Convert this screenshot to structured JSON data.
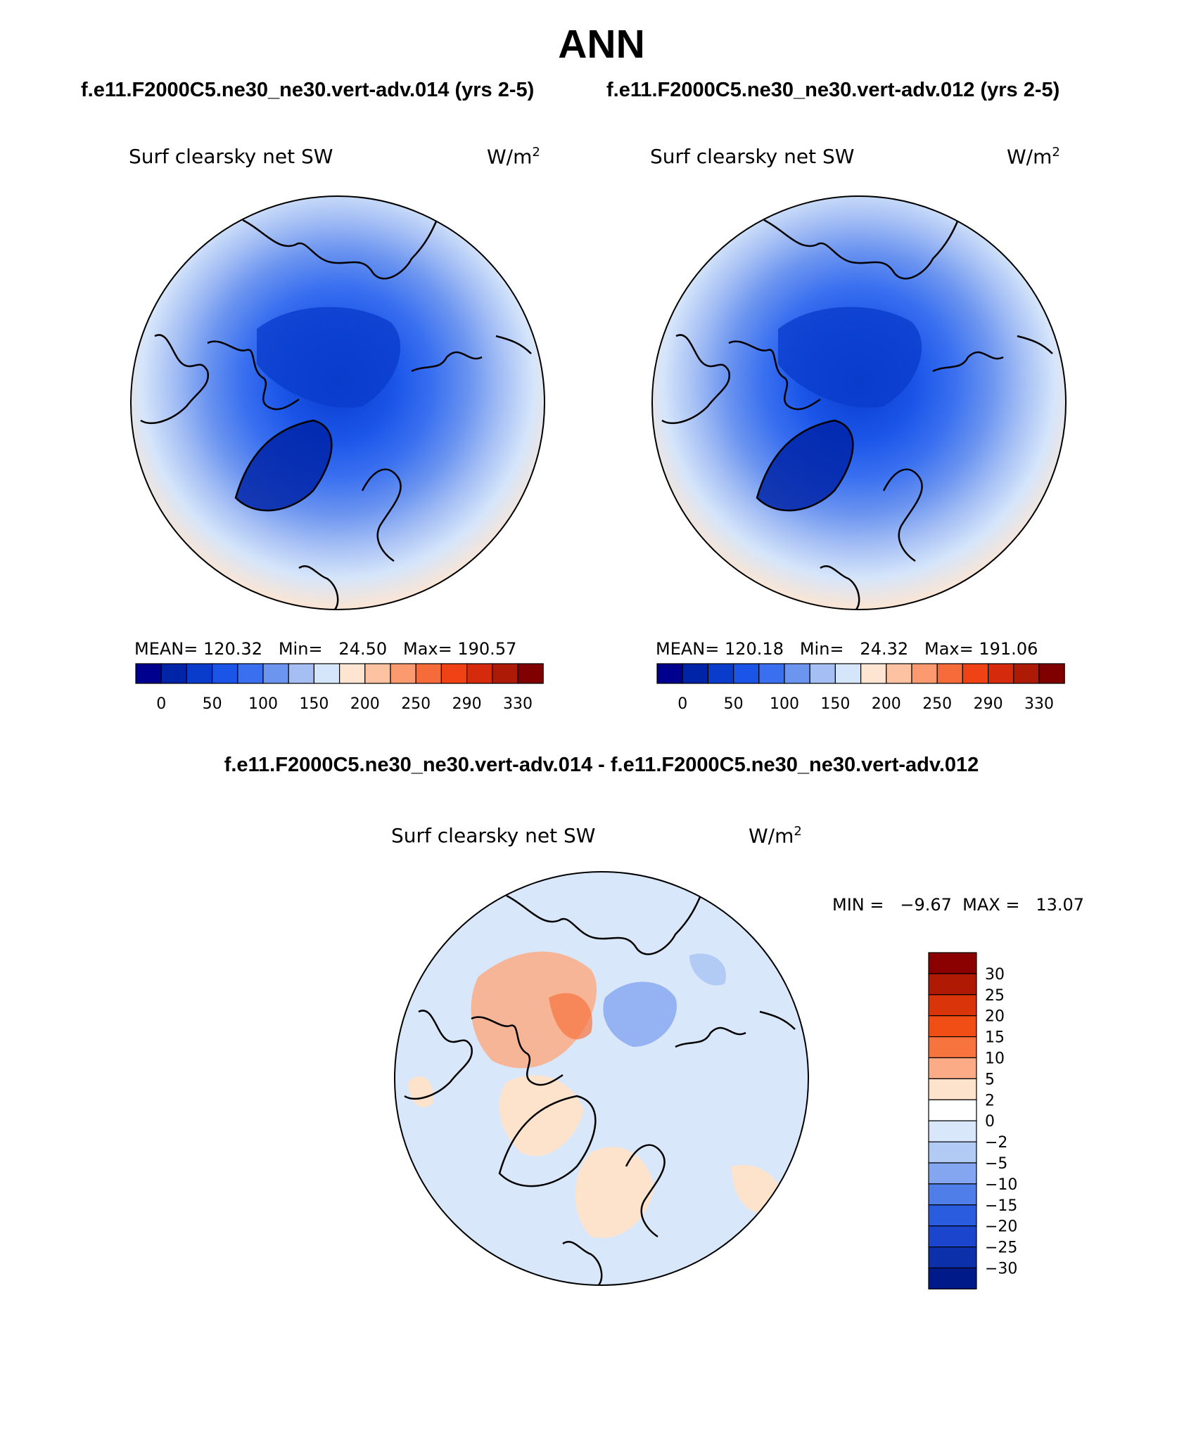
{
  "title": "ANN",
  "panels": [
    {
      "case": "f.e11.F2000C5.ne30_ne30.vert-adv.014 (yrs 2-5)",
      "variable": "Surf clearsky net SW",
      "units_base": "W/m",
      "units_exp": "2",
      "stats": "MEAN= 120.32   Min=   24.50   Max= 190.57"
    },
    {
      "case": "f.e11.F2000C5.ne30_ne30.vert-adv.012 (yrs 2-5)",
      "variable": "Surf clearsky net SW",
      "units_base": "W/m",
      "units_exp": "2",
      "stats": "MEAN= 120.18   Min=   24.32   Max= 191.06"
    }
  ],
  "colorbar_top": {
    "colors": [
      "#00008f",
      "#0024a8",
      "#0a3ccc",
      "#1a55e8",
      "#3a70f0",
      "#6c95f0",
      "#a5bff5",
      "#d5e5fa",
      "#fde5d2",
      "#fdc2a2",
      "#fb9a6e",
      "#f66b3a",
      "#ef4316",
      "#d52a0b",
      "#ad1a05",
      "#800000"
    ],
    "ticks": [
      "0",
      "50",
      "100",
      "150",
      "200",
      "250",
      "290",
      "330"
    ]
  },
  "difference": {
    "title": "f.e11.F2000C5.ne30_ne30.vert-adv.014 - f.e11.F2000C5.ne30_ne30.vert-adv.012",
    "variable": "Surf clearsky net SW",
    "units_base": "W/m",
    "units_exp": "2",
    "min_max": "MIN =   −9.67  MAX =   13.07",
    "colorbar": {
      "colors": [
        "#8b0000",
        "#b01a05",
        "#d9340a",
        "#f04e15",
        "#f8743e",
        "#fbab85",
        "#fde3cc",
        "#ffffff",
        "#d8e7fa",
        "#b2cbf5",
        "#84a6f0",
        "#4f7ee8",
        "#2a5ce0",
        "#1a45cc",
        "#0c2faa",
        "#001a8a"
      ],
      "ticks": [
        "30",
        "25",
        "20",
        "15",
        "10",
        "5",
        "2",
        "0",
        "−2",
        "−5",
        "−10",
        "−15",
        "−20",
        "−25",
        "−30"
      ]
    }
  }
}
